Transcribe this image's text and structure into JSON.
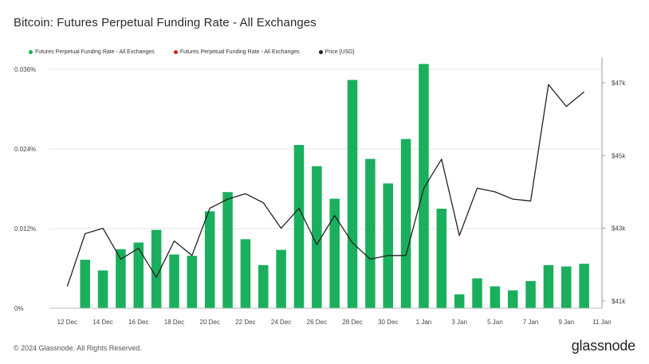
{
  "page": {
    "title": "Bitcoin: Futures Perpetual Funding Rate - All Exchanges",
    "copyright": "© 2024 Glassnode. All Rights Reserved.",
    "brand": "glassnode"
  },
  "legend": [
    {
      "label": "Futures Perpetual Funding Rate - All Exchanges",
      "color": "#1aaf5d"
    },
    {
      "label": "Futures Perpetual Funding Rate - All Exchanges",
      "color": "#e31a1a"
    },
    {
      "label": "Price [USD]",
      "color": "#222222"
    }
  ],
  "chart_data": {
    "type": "bar",
    "x_tick_labels": [
      "12 Dec",
      "14 Dec",
      "16 Dec",
      "18 Dec",
      "20 Dec",
      "22 Dec",
      "24 Dec",
      "26 Dec",
      "28 Dec",
      "30 Dec",
      "1 Jan",
      "3 Jan",
      "5 Jan",
      "7 Jan",
      "9 Jan",
      "11 Jan"
    ],
    "y_left_ticks": [
      {
        "value": 0,
        "label": "0%"
      },
      {
        "value": 0.012,
        "label": "0.012%"
      },
      {
        "value": 0.024,
        "label": "0.024%"
      },
      {
        "value": 0.036,
        "label": "0.036%"
      }
    ],
    "y_right_ticks": [
      {
        "value": 41000,
        "label": "$41k"
      },
      {
        "value": 43000,
        "label": "$43k"
      },
      {
        "value": 45000,
        "label": "$45k"
      },
      {
        "value": 47000,
        "label": "$47k"
      }
    ],
    "y_left_range": [
      0,
      0.0378
    ],
    "y_right_range": [
      40800,
      47700
    ],
    "x_range": [
      "11 Dec",
      "11 Jan"
    ],
    "categories": [
      "13 Dec",
      "14 Dec",
      "15 Dec",
      "16 Dec",
      "17 Dec",
      "18 Dec",
      "19 Dec",
      "20 Dec",
      "21 Dec",
      "22 Dec",
      "23 Dec",
      "24 Dec",
      "25 Dec",
      "26 Dec",
      "27 Dec",
      "28 Dec",
      "29 Dec",
      "30 Dec",
      "31 Dec",
      "1 Jan",
      "2 Jan",
      "3 Jan",
      "4 Jan",
      "5 Jan",
      "6 Jan",
      "7 Jan",
      "8 Jan",
      "9 Jan",
      "10 Jan"
    ],
    "series": [
      {
        "name": "Futures Perpetual Funding Rate - All Exchanges",
        "color": "#1aaf5d",
        "type": "bar",
        "values": [
          0.0073,
          0.0057,
          0.0089,
          0.0099,
          0.0118,
          0.0081,
          0.0079,
          0.0146,
          0.0175,
          0.0104,
          0.0065,
          0.0088,
          0.0246,
          0.0214,
          0.0165,
          0.0344,
          0.0225,
          0.0188,
          0.0255,
          0.0368,
          0.015,
          0.0021,
          0.0045,
          0.0033,
          0.0027,
          0.0041,
          0.0065,
          0.0063,
          0.0067
        ]
      },
      {
        "name": "Price [USD]",
        "color": "#222222",
        "type": "line",
        "x": [
          "12 Dec",
          "13 Dec",
          "14 Dec",
          "15 Dec",
          "16 Dec",
          "17 Dec",
          "18 Dec",
          "19 Dec",
          "20 Dec",
          "21 Dec",
          "22 Dec",
          "23 Dec",
          "24 Dec",
          "25 Dec",
          "26 Dec",
          "27 Dec",
          "28 Dec",
          "29 Dec",
          "30 Dec",
          "31 Dec",
          "1 Jan",
          "2 Jan",
          "3 Jan",
          "4 Jan",
          "5 Jan",
          "6 Jan",
          "7 Jan",
          "8 Jan",
          "9 Jan",
          "10 Jan"
        ],
        "values": [
          41400,
          42850,
          43000,
          42150,
          42450,
          41650,
          42650,
          42250,
          43550,
          43800,
          43950,
          43700,
          43000,
          43550,
          42550,
          43350,
          42600,
          42150,
          42250,
          42250,
          44100,
          44900,
          42800,
          44100,
          44000,
          43800,
          43750,
          46950,
          46350,
          46750
        ]
      }
    ],
    "grid": {
      "horizontal": true,
      "vertical": false
    }
  }
}
